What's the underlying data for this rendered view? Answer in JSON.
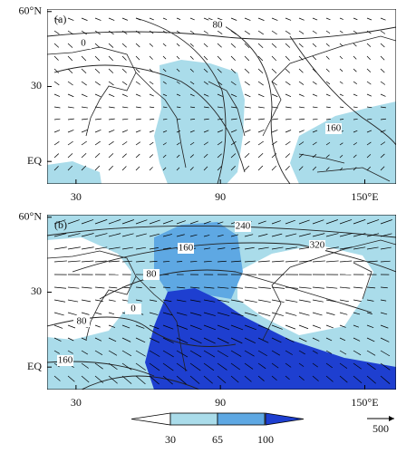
{
  "panels": [
    {
      "label": "(a)",
      "contour_labels": [
        0,
        80,
        160
      ]
    },
    {
      "label": "(b)",
      "contour_labels": [
        240,
        160,
        80,
        320,
        0,
        80,
        160
      ]
    }
  ],
  "map": {
    "xlim": [
      18,
      163
    ],
    "ylim": [
      -9,
      61
    ],
    "xticks": [
      30,
      90,
      {
        "value": 150,
        "label": "150°E"
      }
    ],
    "yticks": [
      {
        "value": 60,
        "label": "60°N"
      },
      30,
      {
        "value": 0,
        "label": "EQ"
      }
    ]
  },
  "colorbar": {
    "levels": [
      30,
      65,
      100
    ],
    "colors": [
      "#ffffff",
      "#aadcea",
      "#5ea8e3",
      "#1e3fd0"
    ]
  },
  "vector_reference": 500
}
